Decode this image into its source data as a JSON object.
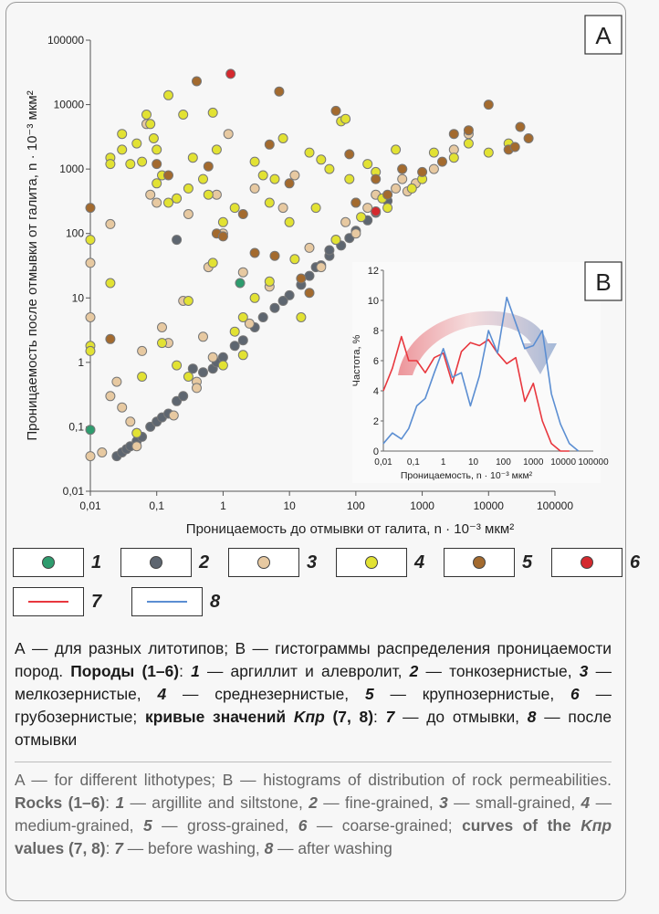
{
  "chart_data": [
    {
      "panel_label": "A",
      "type": "scatter",
      "xlabel": "Проницаемость до отмывки от галита, n · 10⁻³ мкм²",
      "ylabel": "Проницаемость после отмывки от галита, n · 10⁻³ мкм²",
      "xscale": "log",
      "yscale": "log",
      "xlim": [
        0.01,
        100000
      ],
      "ylim": [
        0.01,
        100000
      ],
      "xticks": [
        "0,01",
        "0,1",
        "1",
        "10",
        "100",
        "1000",
        "10000",
        "100000"
      ],
      "yticks": [
        "0,01",
        "0,1",
        "1",
        "10",
        "100",
        "1000",
        "10000",
        "100000"
      ],
      "series": [
        {
          "name": "1",
          "color": "#2e9c6e",
          "points": [
            [
              0.01,
              0.09
            ],
            [
              1.8,
              17
            ]
          ]
        },
        {
          "name": "2",
          "color": "#5e6670",
          "points": [
            [
              0.025,
              0.035
            ],
            [
              0.03,
              0.04
            ],
            [
              0.035,
              0.045
            ],
            [
              0.04,
              0.05
            ],
            [
              0.05,
              0.06
            ],
            [
              0.06,
              0.07
            ],
            [
              0.08,
              0.1
            ],
            [
              0.1,
              0.12
            ],
            [
              0.12,
              0.14
            ],
            [
              0.15,
              0.16
            ],
            [
              0.2,
              0.25
            ],
            [
              0.25,
              0.3
            ],
            [
              0.35,
              0.8
            ],
            [
              0.5,
              0.7
            ],
            [
              0.7,
              0.8
            ],
            [
              0.8,
              1.0
            ],
            [
              1.0,
              1.2
            ],
            [
              1.5,
              1.8
            ],
            [
              2.0,
              2.2
            ],
            [
              3,
              3.5
            ],
            [
              4,
              5
            ],
            [
              6,
              7
            ],
            [
              10,
              11
            ],
            [
              15,
              16
            ],
            [
              20,
              22
            ],
            [
              30,
              32
            ],
            [
              40,
              45
            ],
            [
              60,
              65
            ],
            [
              80,
              85
            ],
            [
              100,
              110
            ],
            [
              150,
              160
            ],
            [
              200,
              210
            ],
            [
              300,
              320
            ],
            [
              40,
              55
            ],
            [
              25,
              30
            ],
            [
              8,
              9
            ],
            [
              0.2,
              80
            ]
          ]
        },
        {
          "name": "3",
          "color": "#e7c9a1",
          "points": [
            [
              0.01,
              0.035
            ],
            [
              0.01,
              35
            ],
            [
              0.01,
              5
            ],
            [
              0.015,
              0.04
            ],
            [
              0.02,
              0.3
            ],
            [
              0.02,
              140
            ],
            [
              0.025,
              0.5
            ],
            [
              0.03,
              0.2
            ],
            [
              0.04,
              0.12
            ],
            [
              0.05,
              0.08
            ],
            [
              0.06,
              1.5
            ],
            [
              0.08,
              400
            ],
            [
              0.1,
              300
            ],
            [
              0.12,
              3.5
            ],
            [
              0.15,
              2.0
            ],
            [
              0.18,
              0.15
            ],
            [
              0.25,
              9
            ],
            [
              0.3,
              200
            ],
            [
              0.4,
              0.5
            ],
            [
              0.5,
              2.5
            ],
            [
              0.6,
              30
            ],
            [
              0.8,
              400
            ],
            [
              1,
              100
            ],
            [
              1.2,
              3500
            ],
            [
              2,
              25
            ],
            [
              3,
              500
            ],
            [
              5,
              15
            ],
            [
              8,
              250
            ],
            [
              12,
              800
            ],
            [
              20,
              60
            ],
            [
              30,
              30
            ],
            [
              50,
              80
            ],
            [
              70,
              150
            ],
            [
              100,
              100
            ],
            [
              150,
              250
            ],
            [
              200,
              400
            ],
            [
              400,
              500
            ],
            [
              500,
              700
            ],
            [
              600,
              450
            ],
            [
              800,
              600
            ],
            [
              1500,
              1000
            ],
            [
              3000,
              2000
            ],
            [
              5000,
              3500
            ],
            [
              0.07,
              5000
            ],
            [
              0.05,
              0.05
            ],
            [
              0.4,
              0.4
            ],
            [
              0.7,
              1.2
            ],
            [
              2.5,
              4
            ]
          ]
        },
        {
          "name": "4",
          "color": "#e2e233",
          "points": [
            [
              0.01,
              80
            ],
            [
              0.01,
              1.8
            ],
            [
              0.01,
              1.5
            ],
            [
              0.02,
              1500
            ],
            [
              0.02,
              1200
            ],
            [
              0.02,
              17
            ],
            [
              0.03,
              2000
            ],
            [
              0.03,
              3500
            ],
            [
              0.04,
              1200
            ],
            [
              0.05,
              2500
            ],
            [
              0.06,
              1300
            ],
            [
              0.06,
              0.6
            ],
            [
              0.07,
              7000
            ],
            [
              0.08,
              5000
            ],
            [
              0.09,
              3000
            ],
            [
              0.1,
              2000
            ],
            [
              0.1,
              600
            ],
            [
              0.12,
              800
            ],
            [
              0.12,
              2.0
            ],
            [
              0.15,
              14000
            ],
            [
              0.15,
              300
            ],
            [
              0.2,
              350
            ],
            [
              0.2,
              0.9
            ],
            [
              0.25,
              7000
            ],
            [
              0.3,
              500
            ],
            [
              0.3,
              0.6
            ],
            [
              0.35,
              1500
            ],
            [
              0.5,
              700
            ],
            [
              0.6,
              400
            ],
            [
              0.7,
              7500
            ],
            [
              0.8,
              2000
            ],
            [
              1,
              150
            ],
            [
              1,
              0.9
            ],
            [
              1.5,
              250
            ],
            [
              2,
              1.3
            ],
            [
              3,
              1300
            ],
            [
              4,
              800
            ],
            [
              5,
              300
            ],
            [
              6,
              700
            ],
            [
              8,
              3000
            ],
            [
              10,
              150
            ],
            [
              12,
              40
            ],
            [
              15,
              5
            ],
            [
              20,
              1800
            ],
            [
              25,
              250
            ],
            [
              30,
              1400
            ],
            [
              40,
              1000
            ],
            [
              50,
              80
            ],
            [
              60,
              5500
            ],
            [
              70,
              6000
            ],
            [
              80,
              700
            ],
            [
              100,
              300
            ],
            [
              120,
              180
            ],
            [
              150,
              1200
            ],
            [
              200,
              900
            ],
            [
              250,
              350
            ],
            [
              300,
              250
            ],
            [
              400,
              2000
            ],
            [
              500,
              1000
            ],
            [
              700,
              500
            ],
            [
              1000,
              700
            ],
            [
              1500,
              1800
            ],
            [
              3000,
              1500
            ],
            [
              5000,
              2500
            ],
            [
              10000,
              1800
            ],
            [
              20000,
              2500
            ],
            [
              0.05,
              0.08
            ],
            [
              0.3,
              9
            ],
            [
              0.7,
              35
            ],
            [
              1.5,
              3
            ],
            [
              2,
              5
            ],
            [
              3,
              10
            ],
            [
              5,
              18
            ]
          ]
        },
        {
          "name": "5",
          "color": "#a36a2e",
          "points": [
            [
              0.01,
              250
            ],
            [
              0.02,
              2.3
            ],
            [
              0.1,
              1200
            ],
            [
              0.15,
              800
            ],
            [
              0.4,
              23000
            ],
            [
              0.8,
              100
            ],
            [
              1,
              90
            ],
            [
              2,
              200
            ],
            [
              3,
              50
            ],
            [
              5,
              2400
            ],
            [
              6,
              45
            ],
            [
              7,
              16000
            ],
            [
              10,
              600
            ],
            [
              15,
              20
            ],
            [
              20,
              12
            ],
            [
              50,
              8000
            ],
            [
              80,
              1700
            ],
            [
              100,
              300
            ],
            [
              200,
              700
            ],
            [
              300,
              400
            ],
            [
              500,
              1000
            ],
            [
              1000,
              900
            ],
            [
              2000,
              1300
            ],
            [
              3000,
              3500
            ],
            [
              5000,
              4000
            ],
            [
              10000,
              10000
            ],
            [
              20000,
              2000
            ],
            [
              30000,
              4500
            ],
            [
              40000,
              3000
            ],
            [
              25000,
              2200
            ],
            [
              0.6,
              1100
            ]
          ]
        },
        {
          "name": "6",
          "color": "#d4292e",
          "points": [
            [
              1.3,
              30000
            ],
            [
              200,
              220
            ]
          ]
        }
      ]
    },
    {
      "panel_label": "B",
      "type": "line",
      "xlabel": "Проницаемость, n · 10⁻³ мкм²",
      "ylabel": "Частота, %",
      "xscale": "log",
      "xlim": [
        0.01,
        100000
      ],
      "ylim": [
        0,
        12
      ],
      "yticks": [
        0,
        2,
        4,
        6,
        8,
        10,
        12
      ],
      "xticks": [
        "0,01",
        "0,1",
        "1",
        "10",
        "100",
        "1000",
        "10000",
        "100000"
      ],
      "series": [
        {
          "name": "7",
          "color": "#e8373e",
          "x": [
            0.01,
            0.02,
            0.04,
            0.07,
            0.13,
            0.25,
            0.5,
            1,
            2,
            4,
            8,
            16,
            32,
            64,
            130,
            260,
            520,
            1000,
            2000,
            4000,
            8000,
            16000
          ],
          "values": [
            4,
            5.5,
            7.6,
            6.0,
            6.0,
            5.2,
            6.2,
            6.5,
            4.5,
            6.6,
            7.2,
            7.0,
            7.4,
            6.5,
            5.8,
            6.2,
            3.3,
            4.5,
            2.0,
            0.5,
            0,
            0
          ]
        },
        {
          "name": "8",
          "color": "#5b8ed2",
          "x": [
            0.01,
            0.02,
            0.04,
            0.07,
            0.13,
            0.25,
            0.5,
            1,
            2,
            4,
            8,
            16,
            32,
            64,
            130,
            260,
            520,
            1000,
            2000,
            4000,
            8000,
            16000,
            32000
          ],
          "values": [
            0.5,
            1.2,
            0.8,
            1.5,
            3.0,
            3.5,
            5.2,
            6.8,
            4.9,
            5.2,
            3.0,
            5.0,
            8.0,
            6.5,
            10.2,
            8.5,
            6.8,
            7.0,
            8.0,
            3.8,
            1.8,
            0.5,
            0
          ]
        }
      ]
    }
  ],
  "legend": [
    {
      "num": "1",
      "kind": "dot",
      "color": "#2e9c6e"
    },
    {
      "num": "2",
      "kind": "dot",
      "color": "#5e6670"
    },
    {
      "num": "3",
      "kind": "dot",
      "color": "#e7c9a1"
    },
    {
      "num": "4",
      "kind": "dot",
      "color": "#e2e233"
    },
    {
      "num": "5",
      "kind": "dot",
      "color": "#a36a2e"
    },
    {
      "num": "6",
      "kind": "dot",
      "color": "#d4292e"
    },
    {
      "num": "7",
      "kind": "line",
      "color": "#e8373e"
    },
    {
      "num": "8",
      "kind": "line",
      "color": "#5b8ed2"
    }
  ],
  "caption_ru": {
    "p1": "А — для разных литотипов; В — гистограммы распределения проницаемости пород. ",
    "rocks_label": "Породы",
    "rocks_range": " (1–6)",
    "p2": ": ",
    "i1": "1",
    "t1": " — аргиллит и алевролит, ",
    "i2": "2",
    "t2": " — тонкозернистые, ",
    "i3": "3",
    "t3": " — мелкозернистые, ",
    "i4": "4",
    "t4": " — среднезернистые, ",
    "i5": "5",
    "t5": " — крупнозернистые, ",
    "i6": "6",
    "t6": " — грубозернистые; ",
    "curves_label": "кривые значений ",
    "kpr": "Kпр",
    "curves_range": " (7, 8)",
    "t7pre": ": ",
    "i7": "7",
    "t7": " — до отмывки, ",
    "i8": "8",
    "t8": " — после отмывки"
  },
  "caption_en": {
    "p1": "A — for different lithotypes; B — histograms of distribution of rock permeabilities. ",
    "rocks_label": "Rocks",
    "rocks_range": " (1–6)",
    "p2": ": ",
    "i1": "1",
    "t1": " — argillite and siltstone, ",
    "i2": "2",
    "t2": " — fine-grained, ",
    "i3": "3",
    "t3": " — small-grained, ",
    "i4": "4",
    "t4": " — medium-grained, ",
    "i5": "5",
    "t5": " — gross-grained, ",
    "i6": "6",
    "t6": " — coarse-grained; ",
    "curves_label": "curves of the ",
    "kpr": "Kпр",
    "curves_tail": " values",
    "curves_range": " (7, 8)",
    "t7pre": ": ",
    "i7": "7",
    "t7": " — before washing, ",
    "i8": "8",
    "t8": " — after washing"
  }
}
